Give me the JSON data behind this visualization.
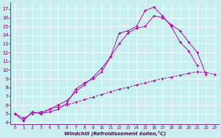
{
  "xlabel": "Windchill (Refroidissement éolien,°C)",
  "background_color": "#c8eef0",
  "line_color": "#aa00aa",
  "grid_color": "#ffffff",
  "xlim": [
    -0.5,
    23.5
  ],
  "ylim": [
    3.8,
    17.8
  ],
  "xticks": [
    0,
    1,
    2,
    3,
    4,
    5,
    6,
    7,
    8,
    9,
    10,
    11,
    12,
    13,
    14,
    15,
    16,
    17,
    18,
    19,
    20,
    21,
    22,
    23
  ],
  "yticks": [
    4,
    5,
    6,
    7,
    8,
    9,
    10,
    11,
    12,
    13,
    14,
    15,
    16,
    17
  ],
  "s1_x": [
    0,
    1,
    2,
    3,
    4,
    5,
    6,
    7,
    8,
    9,
    10,
    11,
    12,
    13,
    14,
    15,
    16,
    17,
    18,
    19,
    20,
    21
  ],
  "s1_y": [
    5.0,
    4.2,
    5.2,
    5.0,
    5.2,
    5.5,
    6.2,
    7.8,
    8.5,
    9.0,
    9.8,
    11.5,
    14.2,
    14.5,
    15.0,
    16.8,
    17.2,
    16.2,
    15.0,
    13.2,
    12.2,
    10.5
  ],
  "s2_x": [
    0,
    1,
    2,
    3,
    4,
    5,
    6,
    7,
    8,
    9,
    10,
    11,
    12,
    13,
    14,
    15,
    16,
    17,
    18,
    19,
    20,
    21,
    22
  ],
  "s2_y": [
    5.0,
    4.2,
    5.2,
    5.0,
    5.5,
    6.0,
    6.5,
    7.5,
    8.3,
    9.2,
    10.2,
    11.5,
    13.0,
    14.2,
    14.8,
    15.0,
    16.2,
    16.0,
    15.2,
    14.5,
    13.2,
    12.0,
    9.5
  ],
  "s3_x": [
    0,
    1,
    2,
    3,
    4,
    5,
    6,
    7,
    8,
    9,
    10,
    11,
    12,
    13,
    14,
    15,
    16,
    17,
    18,
    19,
    20,
    21,
    22,
    23
  ],
  "s3_y": [
    5.0,
    4.5,
    5.0,
    5.2,
    5.5,
    5.8,
    6.0,
    6.3,
    6.6,
    6.9,
    7.2,
    7.5,
    7.8,
    8.0,
    8.3,
    8.5,
    8.8,
    9.0,
    9.2,
    9.4,
    9.6,
    9.8,
    9.7,
    9.5
  ]
}
